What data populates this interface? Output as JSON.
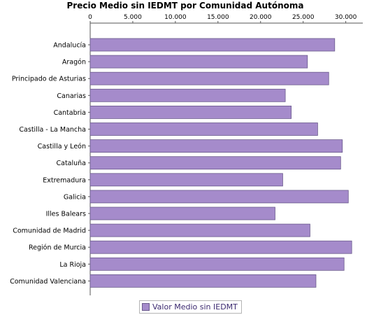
{
  "chart_data": {
    "type": "bar",
    "orientation": "horizontal",
    "title": "Precio Medio sin IEDMT por Comunidad Autónoma",
    "categories": [
      "Andalucía",
      "Aragón",
      "Principado de Asturias",
      "Canarias",
      "Cantabria",
      "Castilla - La Mancha",
      "Castilla y León",
      "Cataluña",
      "Extremadura",
      "Galicia",
      "Illes Balears",
      "Comunidad de Madrid",
      "Región de Murcia",
      "La Rioja",
      "Comunidad Valenciana"
    ],
    "series": [
      {
        "name": "Valor Medio sin IEDMT",
        "values": [
          28700,
          25500,
          28000,
          22900,
          23600,
          26700,
          29600,
          29400,
          22600,
          30300,
          21700,
          25800,
          30700,
          29800,
          26500
        ]
      }
    ],
    "x_ticks": [
      "0",
      "5.000",
      "10.000",
      "15.000",
      "20.000",
      "25.000",
      "30.000"
    ],
    "xlim": [
      0,
      32000
    ],
    "legend_position": "bottom",
    "grid": false,
    "bar_color": "#a58bcb",
    "bar_stroke": "#6a5a8c"
  }
}
